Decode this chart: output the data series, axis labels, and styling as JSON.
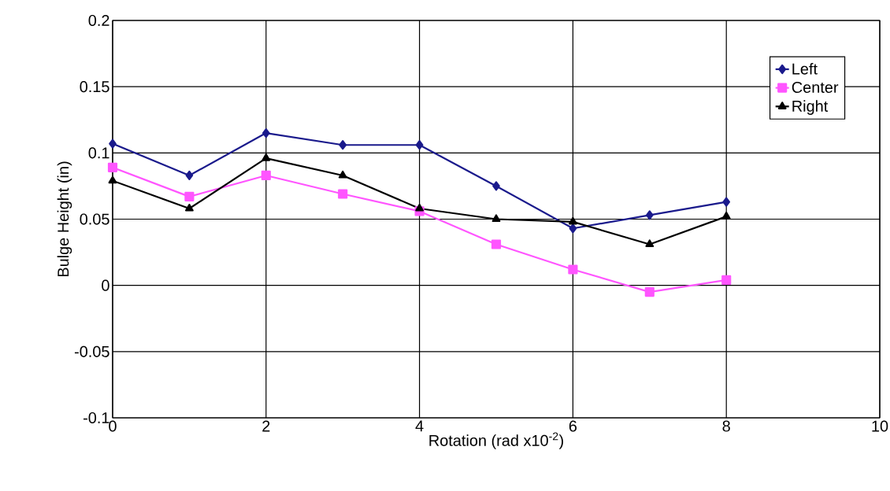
{
  "chart_data": {
    "type": "line",
    "xlabel": "Rotation (rad x10$^{-2}$)",
    "ylabel": "Bulge Height (in)",
    "x": [
      0,
      1,
      2,
      3,
      4,
      5,
      6,
      7,
      8
    ],
    "series": [
      {
        "name": "Left",
        "color": "#1a1a8c",
        "marker": "diamond",
        "values": [
          0.107,
          0.083,
          0.115,
          0.106,
          0.106,
          0.075,
          0.043,
          0.053,
          0.063
        ]
      },
      {
        "name": "Center",
        "color": "#ff55ff",
        "marker": "square",
        "values": [
          0.089,
          0.067,
          0.083,
          0.069,
          0.056,
          0.031,
          0.012,
          -0.005,
          0.004
        ]
      },
      {
        "name": "Right",
        "color": "#000000",
        "marker": "triangle",
        "values": [
          0.079,
          0.058,
          0.096,
          0.083,
          0.058,
          0.05,
          0.048,
          0.031,
          0.052
        ]
      }
    ],
    "xlim": [
      0,
      10
    ],
    "xticks": [
      0,
      2,
      4,
      6,
      8,
      10
    ],
    "ylim": [
      -0.1,
      0.2
    ],
    "yticks": [
      -0.1,
      -0.05,
      0,
      0.05,
      0.1,
      0.15,
      0.2
    ],
    "grid": true,
    "legend": "top right",
    "line_style": "solid"
  }
}
